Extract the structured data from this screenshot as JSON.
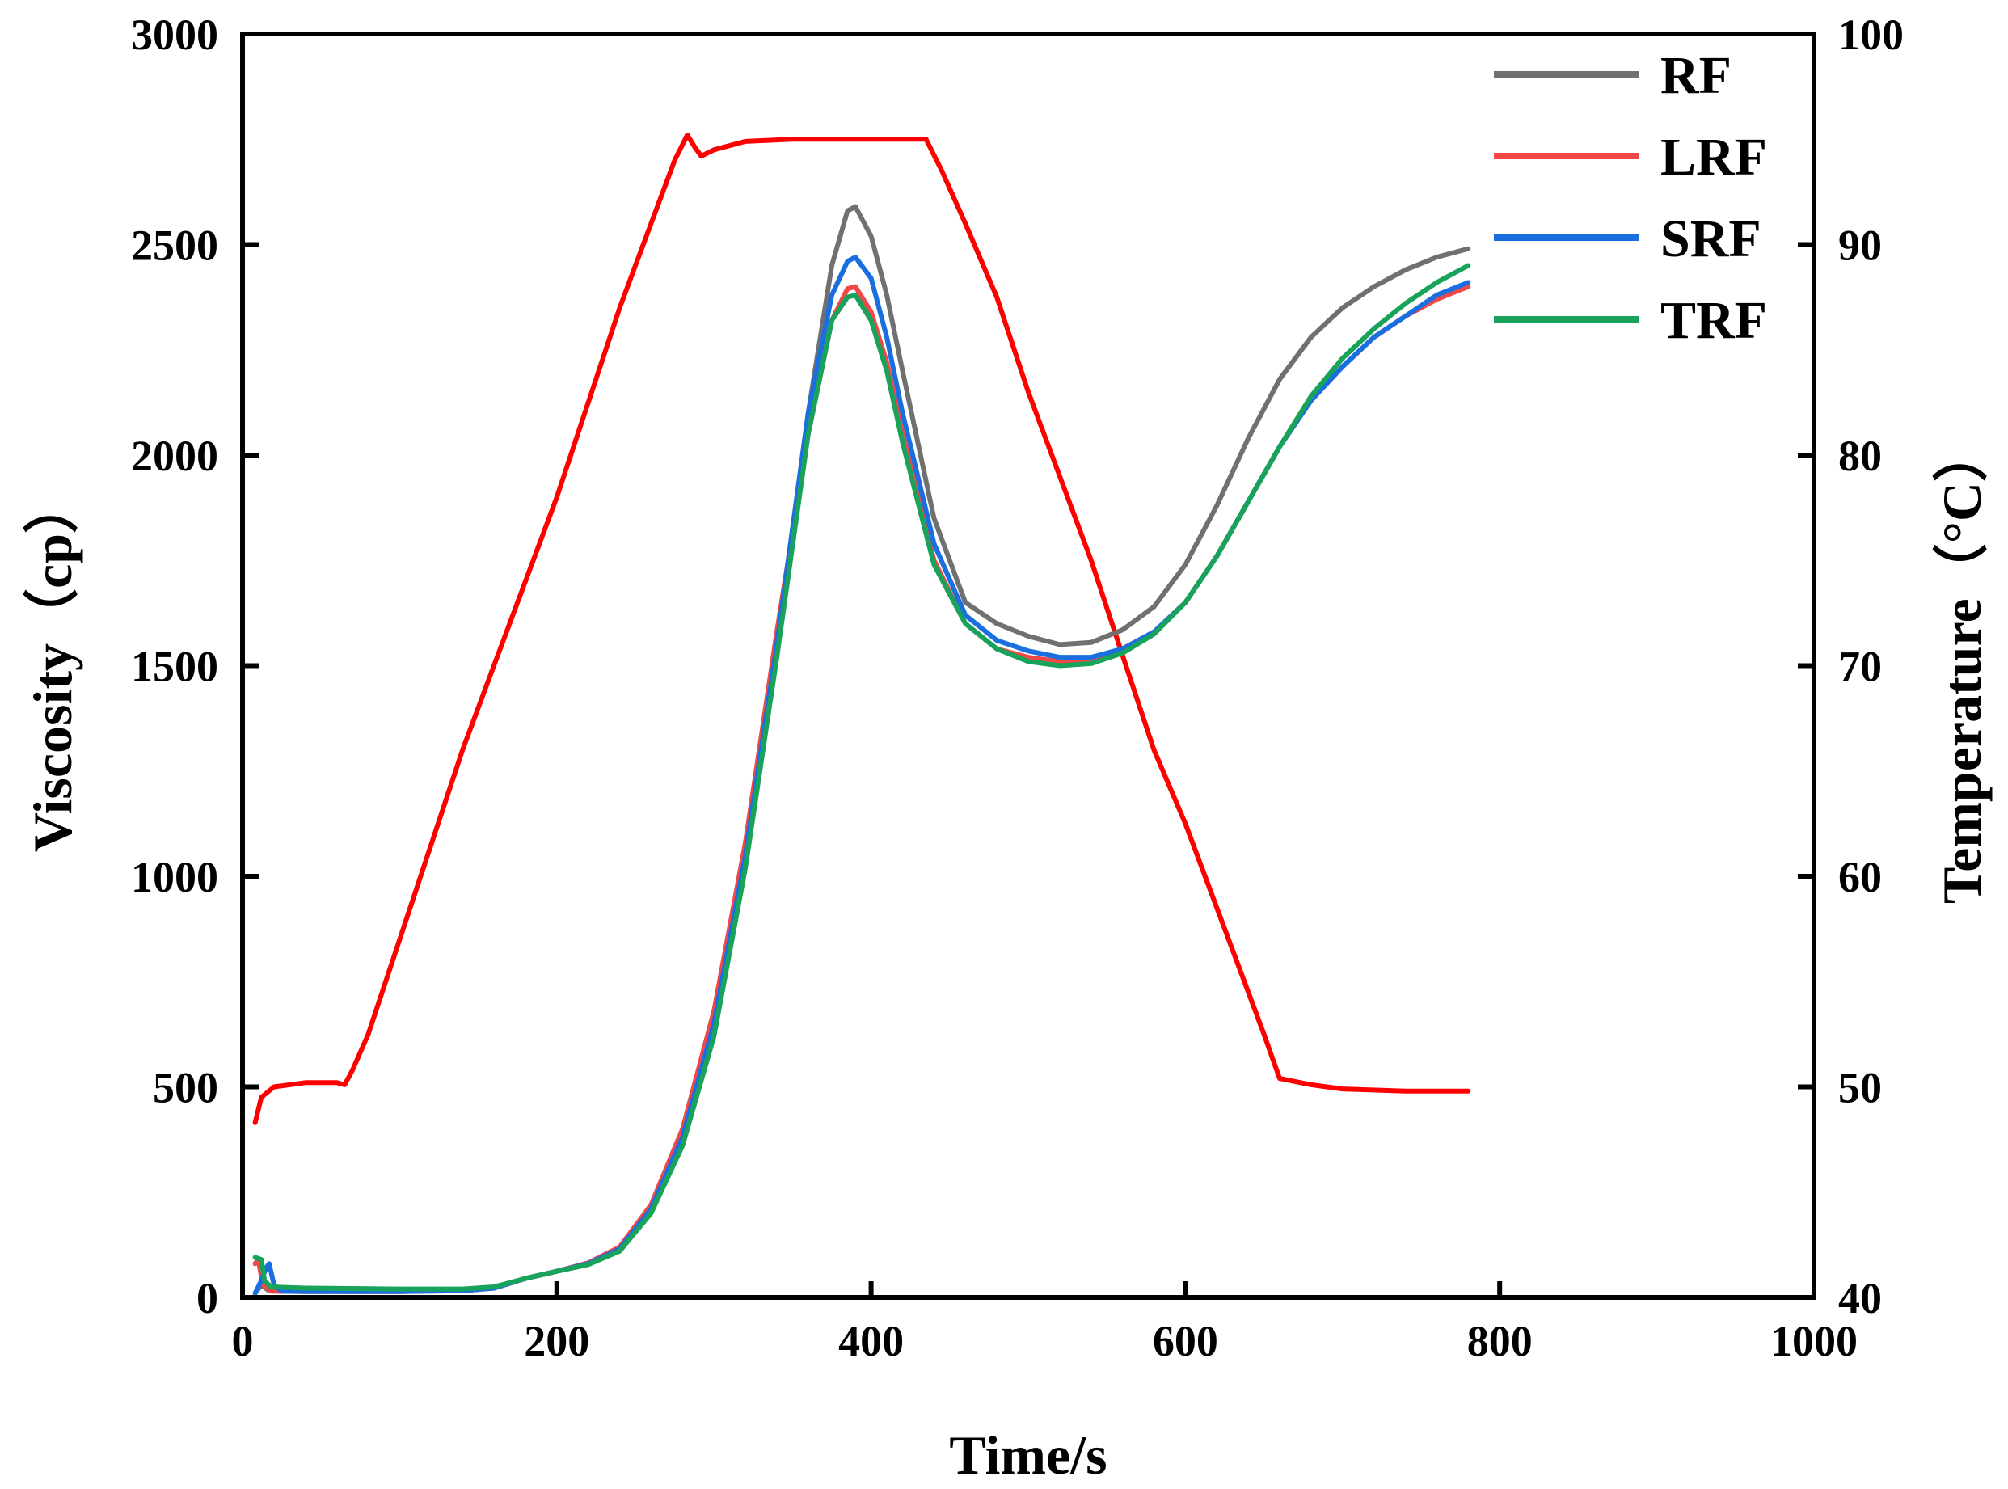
{
  "chart_data": {
    "type": "line",
    "title": "",
    "xlabel": "Time/s",
    "ylabel": "Viscosity（cp）",
    "y2label": "Temperature（°C）",
    "xlim": [
      0,
      1000
    ],
    "ylim": [
      0,
      3000
    ],
    "y2lim": [
      40,
      100
    ],
    "xticks": [
      0,
      200,
      400,
      600,
      800,
      1000
    ],
    "yticks": [
      0,
      500,
      1000,
      1500,
      2000,
      2500,
      3000
    ],
    "y2ticks": [
      40,
      50,
      60,
      70,
      80,
      90,
      100
    ],
    "grid": false,
    "legend_position": "top-right",
    "series": [
      {
        "name": "RF",
        "axis": "left",
        "color": "#707070",
        "show_in_legend": true,
        "points": [
          [
            8,
            10
          ],
          [
            12,
            30
          ],
          [
            16,
            18
          ],
          [
            20,
            15
          ],
          [
            40,
            15
          ],
          [
            100,
            15
          ],
          [
            140,
            16
          ],
          [
            160,
            22
          ],
          [
            180,
            45
          ],
          [
            200,
            62
          ],
          [
            220,
            80
          ],
          [
            240,
            115
          ],
          [
            260,
            210
          ],
          [
            280,
            380
          ],
          [
            300,
            650
          ],
          [
            320,
            1050
          ],
          [
            340,
            1550
          ],
          [
            360,
            2100
          ],
          [
            375,
            2450
          ],
          [
            385,
            2580
          ],
          [
            390,
            2590
          ],
          [
            400,
            2520
          ],
          [
            410,
            2380
          ],
          [
            420,
            2200
          ],
          [
            440,
            1850
          ],
          [
            460,
            1650
          ],
          [
            480,
            1600
          ],
          [
            500,
            1570
          ],
          [
            520,
            1550
          ],
          [
            540,
            1555
          ],
          [
            560,
            1585
          ],
          [
            580,
            1640
          ],
          [
            600,
            1740
          ],
          [
            620,
            1880
          ],
          [
            640,
            2040
          ],
          [
            660,
            2180
          ],
          [
            680,
            2280
          ],
          [
            700,
            2350
          ],
          [
            720,
            2400
          ],
          [
            740,
            2440
          ],
          [
            760,
            2470
          ],
          [
            780,
            2490
          ]
        ]
      },
      {
        "name": "LRF",
        "axis": "left",
        "color": "#f04848",
        "show_in_legend": true,
        "points": [
          [
            8,
            80
          ],
          [
            10,
            90
          ],
          [
            13,
            30
          ],
          [
            18,
            15
          ],
          [
            40,
            14
          ],
          [
            100,
            14
          ],
          [
            140,
            16
          ],
          [
            160,
            22
          ],
          [
            180,
            45
          ],
          [
            200,
            62
          ],
          [
            220,
            82
          ],
          [
            240,
            120
          ],
          [
            260,
            220
          ],
          [
            280,
            400
          ],
          [
            300,
            680
          ],
          [
            320,
            1080
          ],
          [
            340,
            1580
          ],
          [
            360,
            2050
          ],
          [
            375,
            2320
          ],
          [
            385,
            2395
          ],
          [
            390,
            2400
          ],
          [
            400,
            2340
          ],
          [
            410,
            2220
          ],
          [
            420,
            2050
          ],
          [
            440,
            1750
          ],
          [
            460,
            1600
          ],
          [
            480,
            1540
          ],
          [
            500,
            1520
          ],
          [
            520,
            1510
          ],
          [
            540,
            1515
          ],
          [
            560,
            1540
          ],
          [
            580,
            1580
          ],
          [
            600,
            1650
          ],
          [
            620,
            1760
          ],
          [
            640,
            1890
          ],
          [
            660,
            2020
          ],
          [
            680,
            2130
          ],
          [
            700,
            2210
          ],
          [
            720,
            2280
          ],
          [
            740,
            2330
          ],
          [
            760,
            2370
          ],
          [
            780,
            2400
          ]
        ]
      },
      {
        "name": "SRF",
        "axis": "left",
        "color": "#1a6fe0",
        "show_in_legend": true,
        "points": [
          [
            8,
            10
          ],
          [
            12,
            40
          ],
          [
            15,
            70
          ],
          [
            17,
            80
          ],
          [
            20,
            30
          ],
          [
            25,
            15
          ],
          [
            40,
            14
          ],
          [
            100,
            14
          ],
          [
            140,
            16
          ],
          [
            160,
            22
          ],
          [
            180,
            45
          ],
          [
            200,
            62
          ],
          [
            220,
            80
          ],
          [
            240,
            115
          ],
          [
            260,
            210
          ],
          [
            280,
            380
          ],
          [
            300,
            650
          ],
          [
            320,
            1050
          ],
          [
            340,
            1550
          ],
          [
            360,
            2100
          ],
          [
            375,
            2380
          ],
          [
            385,
            2460
          ],
          [
            390,
            2470
          ],
          [
            400,
            2420
          ],
          [
            410,
            2280
          ],
          [
            420,
            2100
          ],
          [
            440,
            1790
          ],
          [
            460,
            1620
          ],
          [
            480,
            1560
          ],
          [
            500,
            1535
          ],
          [
            520,
            1520
          ],
          [
            540,
            1520
          ],
          [
            560,
            1540
          ],
          [
            580,
            1580
          ],
          [
            600,
            1650
          ],
          [
            620,
            1760
          ],
          [
            640,
            1890
          ],
          [
            660,
            2020
          ],
          [
            680,
            2130
          ],
          [
            700,
            2210
          ],
          [
            720,
            2280
          ],
          [
            740,
            2330
          ],
          [
            760,
            2380
          ],
          [
            780,
            2410
          ]
        ]
      },
      {
        "name": "TRF",
        "axis": "left",
        "color": "#19a35a",
        "show_in_legend": true,
        "points": [
          [
            8,
            95
          ],
          [
            12,
            90
          ],
          [
            14,
            40
          ],
          [
            18,
            25
          ],
          [
            40,
            22
          ],
          [
            100,
            20
          ],
          [
            140,
            20
          ],
          [
            160,
            25
          ],
          [
            180,
            45
          ],
          [
            200,
            62
          ],
          [
            220,
            78
          ],
          [
            240,
            110
          ],
          [
            260,
            200
          ],
          [
            280,
            360
          ],
          [
            300,
            620
          ],
          [
            320,
            1020
          ],
          [
            340,
            1520
          ],
          [
            360,
            2050
          ],
          [
            375,
            2320
          ],
          [
            385,
            2375
          ],
          [
            390,
            2380
          ],
          [
            400,
            2320
          ],
          [
            410,
            2200
          ],
          [
            420,
            2030
          ],
          [
            440,
            1740
          ],
          [
            460,
            1600
          ],
          [
            480,
            1540
          ],
          [
            500,
            1510
          ],
          [
            520,
            1500
          ],
          [
            540,
            1505
          ],
          [
            560,
            1530
          ],
          [
            580,
            1575
          ],
          [
            600,
            1650
          ],
          [
            620,
            1760
          ],
          [
            640,
            1890
          ],
          [
            660,
            2020
          ],
          [
            680,
            2140
          ],
          [
            700,
            2230
          ],
          [
            720,
            2300
          ],
          [
            740,
            2360
          ],
          [
            760,
            2410
          ],
          [
            780,
            2450
          ]
        ]
      },
      {
        "name": "Temperature",
        "axis": "right",
        "color": "#ff0000",
        "show_in_legend": false,
        "points": [
          [
            8,
            48.3
          ],
          [
            12,
            49.5
          ],
          [
            20,
            50
          ],
          [
            40,
            50.2
          ],
          [
            60,
            50.2
          ],
          [
            65,
            50.1
          ],
          [
            70,
            50.8
          ],
          [
            80,
            52.5
          ],
          [
            100,
            57
          ],
          [
            120,
            61.5
          ],
          [
            140,
            66
          ],
          [
            160,
            70
          ],
          [
            180,
            74
          ],
          [
            200,
            78
          ],
          [
            220,
            82.5
          ],
          [
            240,
            87
          ],
          [
            260,
            91
          ],
          [
            275,
            94
          ],
          [
            283,
            95.2
          ],
          [
            288,
            94.6
          ],
          [
            292,
            94.2
          ],
          [
            300,
            94.5
          ],
          [
            320,
            94.9
          ],
          [
            350,
            95
          ],
          [
            400,
            95
          ],
          [
            435,
            95
          ],
          [
            445,
            93.5
          ],
          [
            460,
            91
          ],
          [
            480,
            87.5
          ],
          [
            500,
            83
          ],
          [
            520,
            79
          ],
          [
            540,
            75
          ],
          [
            560,
            70.5
          ],
          [
            580,
            66
          ],
          [
            600,
            62.5
          ],
          [
            620,
            58.5
          ],
          [
            640,
            54.5
          ],
          [
            650,
            52.5
          ],
          [
            660,
            50.4
          ],
          [
            680,
            50.1
          ],
          [
            700,
            49.9
          ],
          [
            740,
            49.8
          ],
          [
            780,
            49.8
          ]
        ]
      }
    ]
  }
}
